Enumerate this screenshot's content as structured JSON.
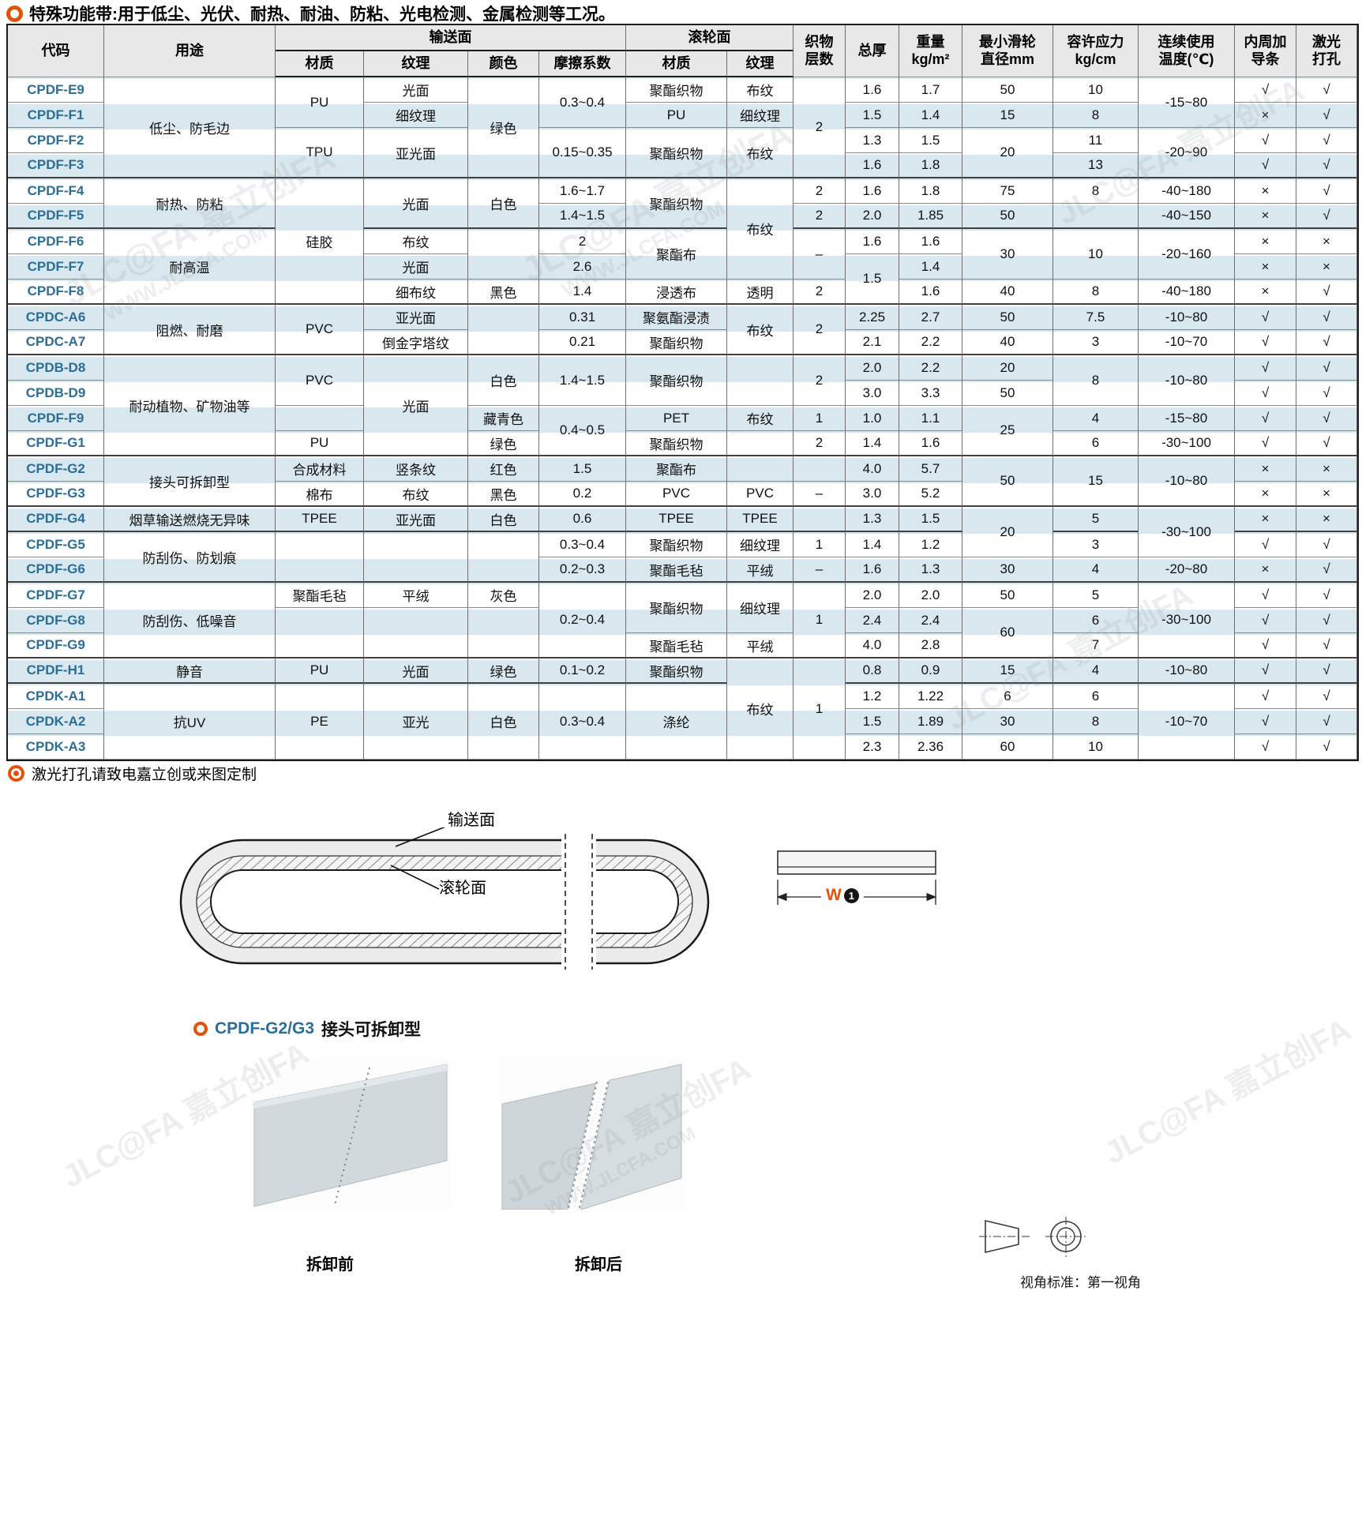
{
  "page": {
    "title": "特殊功能带:用于低尘、光伏、耐热、耐油、防粘、光电检测、金属检测等工况。",
    "footnote": "激光打孔请致电嘉立创或来图定制",
    "accent_orange": "#e25309",
    "code_blue": "#2b6e97",
    "stripe_blue": "#d9e8ef"
  },
  "table": {
    "header": {
      "code": "代码",
      "use": "用途",
      "conveying_group": "输送面",
      "roller_group": "滚轮面",
      "material": "材质",
      "texture": "纹理",
      "color": "颜色",
      "friction": "摩擦系数",
      "layers_l1": "织物",
      "layers_l2": "层数",
      "thickness": "总厚",
      "weight_l1": "重量",
      "weight_l2": "kg/m²",
      "pulley_l1": "最小滑轮",
      "pulley_l2": "直径mm",
      "stress_l1": "容许应力",
      "stress_l2": "kg/cm",
      "temp_l1": "连续使用",
      "temp_l2": "温度(℃)",
      "guide_l1": "内周加",
      "guide_l2": "导条",
      "laser_l1": "激光",
      "laser_l2": "打孔"
    },
    "section_end_rows": [
      3,
      5,
      8,
      10,
      14,
      16,
      17,
      19,
      22,
      23
    ],
    "rows": [
      [
        [
          "CPDF-E9"
        ],
        [
          "低尘、防毛边",
          4
        ],
        [
          "PU",
          2
        ],
        [
          "光面"
        ],
        [
          "绿色",
          4
        ],
        [
          "0.3~0.4",
          2
        ],
        [
          "聚酯织物"
        ],
        [
          "布纹"
        ],
        [
          "2",
          4
        ],
        [
          "1.6"
        ],
        [
          "1.7"
        ],
        [
          "50"
        ],
        [
          "10"
        ],
        [
          "-15~80",
          2
        ],
        [
          "√"
        ],
        [
          "√"
        ]
      ],
      [
        [
          "CPDF-F1"
        ],
        [
          "细纹理"
        ],
        [
          "PU"
        ],
        [
          "细纹理"
        ],
        [
          "1.5"
        ],
        [
          "1.4"
        ],
        [
          "15"
        ],
        [
          "8"
        ],
        [
          "×"
        ],
        [
          "√"
        ]
      ],
      [
        [
          "CPDF-F2"
        ],
        [
          "TPU",
          2
        ],
        [
          "亚光面",
          2
        ],
        [
          "0.15~0.35",
          2
        ],
        [
          "聚酯织物",
          2
        ],
        [
          "布纹",
          2
        ],
        [
          "1.3"
        ],
        [
          "1.5"
        ],
        [
          "20",
          2
        ],
        [
          "11"
        ],
        [
          "-20~90",
          2
        ],
        [
          "√"
        ],
        [
          "√"
        ]
      ],
      [
        [
          "CPDF-F3"
        ],
        [
          "1.6"
        ],
        [
          "1.8"
        ],
        [
          "13"
        ],
        [
          "√"
        ],
        [
          "√"
        ]
      ],
      [
        [
          "CPDF-F4"
        ],
        [
          "耐热、防粘",
          2
        ],
        [
          "硅胶",
          5
        ],
        [
          "光面",
          2
        ],
        [
          "白色",
          2
        ],
        [
          "1.6~1.7"
        ],
        [
          "聚酯织物",
          2
        ],
        [
          "布纹",
          4
        ],
        [
          "2"
        ],
        [
          "1.6"
        ],
        [
          "1.8"
        ],
        [
          "75"
        ],
        [
          "8"
        ],
        [
          "-40~180"
        ],
        [
          "×"
        ],
        [
          "√"
        ]
      ],
      [
        [
          "CPDF-F5"
        ],
        [
          "1.4~1.5"
        ],
        [
          "2"
        ],
        [
          "2.0"
        ],
        [
          "1.85"
        ],
        [
          "50"
        ],
        [
          ""
        ],
        [
          "-40~150"
        ],
        [
          "×"
        ],
        [
          "√"
        ]
      ],
      [
        [
          "CPDF-F6"
        ],
        [
          "耐高温",
          3
        ],
        [
          "布纹"
        ],
        [
          "",
          2
        ],
        [
          "2"
        ],
        [
          "聚酯布",
          2
        ],
        [
          "–",
          2
        ],
        [
          "1.6"
        ],
        [
          "1.6"
        ],
        [
          "30",
          2
        ],
        [
          "10",
          2
        ],
        [
          "-20~160",
          2
        ],
        [
          "×"
        ],
        [
          "×"
        ]
      ],
      [
        [
          "CPDF-F7"
        ],
        [
          "光面"
        ],
        [
          "2.6"
        ],
        [
          "1.5",
          2
        ],
        [
          "1.4"
        ],
        [
          "×"
        ],
        [
          "×"
        ]
      ],
      [
        [
          "CPDF-F8"
        ],
        [
          "细布纹"
        ],
        [
          "黑色"
        ],
        [
          "1.4"
        ],
        [
          "浸透布"
        ],
        [
          "透明"
        ],
        [
          "2"
        ],
        [
          "1.6"
        ],
        [
          "40"
        ],
        [
          "8"
        ],
        [
          "-40~180"
        ],
        [
          "×"
        ],
        [
          "√"
        ]
      ],
      [
        [
          "CPDC-A6"
        ],
        [
          "阻燃、耐磨",
          2
        ],
        [
          "PVC",
          2
        ],
        [
          "亚光面"
        ],
        [
          "",
          2
        ],
        [
          "0.31"
        ],
        [
          "聚氨酯浸渍"
        ],
        [
          "布纹",
          2
        ],
        [
          "2",
          2
        ],
        [
          "2.25"
        ],
        [
          "2.7"
        ],
        [
          "50"
        ],
        [
          "7.5"
        ],
        [
          "-10~80"
        ],
        [
          "√"
        ],
        [
          "√"
        ]
      ],
      [
        [
          "CPDC-A7"
        ],
        [
          "倒金字塔纹"
        ],
        [
          "0.21"
        ],
        [
          "聚酯织物"
        ],
        [
          "2.1"
        ],
        [
          "2.2"
        ],
        [
          "40"
        ],
        [
          "3"
        ],
        [
          "-10~70"
        ],
        [
          "√"
        ],
        [
          "√"
        ]
      ],
      [
        [
          "CPDB-D8"
        ],
        [
          "耐动植物、矿物油等",
          4
        ],
        [
          "PVC",
          2
        ],
        [
          "光面",
          4
        ],
        [
          "白色",
          2
        ],
        [
          "1.4~1.5",
          2
        ],
        [
          "聚酯织物",
          2
        ],
        [
          "",
          2
        ],
        [
          "2",
          2
        ],
        [
          "2.0"
        ],
        [
          "2.2"
        ],
        [
          "20"
        ],
        [
          "8",
          2
        ],
        [
          "-10~80",
          2
        ],
        [
          "√"
        ],
        [
          "√"
        ]
      ],
      [
        [
          "CPDB-D9"
        ],
        [
          "3.0"
        ],
        [
          "3.3"
        ],
        [
          "50"
        ],
        [
          "√"
        ],
        [
          "√"
        ]
      ],
      [
        [
          "CPDF-F9"
        ],
        [
          ""
        ],
        [
          "藏青色"
        ],
        [
          "0.4~0.5",
          2
        ],
        [
          "PET"
        ],
        [
          "布纹"
        ],
        [
          "1"
        ],
        [
          "1.0"
        ],
        [
          "1.1"
        ],
        [
          "25",
          2
        ],
        [
          "4"
        ],
        [
          "-15~80"
        ],
        [
          "√"
        ],
        [
          "√"
        ]
      ],
      [
        [
          "CPDF-G1"
        ],
        [
          "PU"
        ],
        [
          "绿色"
        ],
        [
          "聚酯织物"
        ],
        [
          ""
        ],
        [
          "2"
        ],
        [
          "1.4"
        ],
        [
          "1.6"
        ],
        [
          "6"
        ],
        [
          "-30~100"
        ],
        [
          "√"
        ],
        [
          "√"
        ]
      ],
      [
        [
          "CPDF-G2"
        ],
        [
          "接头可拆卸型",
          2
        ],
        [
          "合成材料"
        ],
        [
          "竖条纹"
        ],
        [
          "红色"
        ],
        [
          "1.5"
        ],
        [
          "聚酯布"
        ],
        [
          ""
        ],
        [
          ""
        ],
        [
          "4.0"
        ],
        [
          "5.7"
        ],
        [
          "50",
          2
        ],
        [
          "15",
          2
        ],
        [
          "-10~80",
          2
        ],
        [
          "×"
        ],
        [
          "×"
        ]
      ],
      [
        [
          "CPDF-G3"
        ],
        [
          "棉布"
        ],
        [
          "布纹"
        ],
        [
          "黑色"
        ],
        [
          "0.2"
        ],
        [
          "PVC"
        ],
        [
          "PVC"
        ],
        [
          "–"
        ],
        [
          "3.0"
        ],
        [
          "5.2"
        ],
        [
          "×"
        ],
        [
          "×"
        ]
      ],
      [
        [
          "CPDF-G4"
        ],
        [
          "烟草输送燃烧无异味"
        ],
        [
          "TPEE"
        ],
        [
          "亚光面"
        ],
        [
          "白色"
        ],
        [
          "0.6"
        ],
        [
          "TPEE"
        ],
        [
          "TPEE"
        ],
        [
          ""
        ],
        [
          "1.3"
        ],
        [
          "1.5"
        ],
        [
          "20",
          2
        ],
        [
          "5"
        ],
        [
          "-30~100",
          2
        ],
        [
          "×"
        ],
        [
          "×"
        ]
      ],
      [
        [
          "CPDF-G5"
        ],
        [
          "防刮伤、防划痕",
          2
        ],
        [
          "",
          2
        ],
        [
          "",
          2
        ],
        [
          "",
          2
        ],
        [
          "0.3~0.4"
        ],
        [
          "聚酯织物"
        ],
        [
          "细纹理"
        ],
        [
          "1"
        ],
        [
          "1.4"
        ],
        [
          "1.2"
        ],
        [
          "3"
        ],
        [
          "√"
        ],
        [
          "√"
        ]
      ],
      [
        [
          "CPDF-G6"
        ],
        [
          "0.2~0.3"
        ],
        [
          "聚酯毛毡"
        ],
        [
          "平绒"
        ],
        [
          "–"
        ],
        [
          "1.6"
        ],
        [
          "1.3"
        ],
        [
          "30"
        ],
        [
          "4"
        ],
        [
          "-20~80"
        ],
        [
          "×"
        ],
        [
          "√"
        ]
      ],
      [
        [
          "CPDF-G7"
        ],
        [
          "防刮伤、低噪音",
          3
        ],
        [
          "聚酯毛毡"
        ],
        [
          "平绒"
        ],
        [
          "灰色"
        ],
        [
          "0.2~0.4",
          3
        ],
        [
          "聚酯织物",
          2
        ],
        [
          "细纹理",
          2
        ],
        [
          "1",
          3
        ],
        [
          "2.0"
        ],
        [
          "2.0"
        ],
        [
          "50"
        ],
        [
          "5"
        ],
        [
          "-30~100",
          3
        ],
        [
          "√"
        ],
        [
          "√"
        ]
      ],
      [
        [
          "CPDF-G8"
        ],
        [
          "",
          2
        ],
        [
          "",
          2
        ],
        [
          "",
          2
        ],
        [
          "2.4"
        ],
        [
          "2.4"
        ],
        [
          "60",
          2
        ],
        [
          "6"
        ],
        [
          "√"
        ],
        [
          "√"
        ]
      ],
      [
        [
          "CPDF-G9"
        ],
        [
          "聚酯毛毡"
        ],
        [
          "平绒"
        ],
        [
          "4.0"
        ],
        [
          "2.8"
        ],
        [
          "7"
        ],
        [
          "√"
        ],
        [
          "√"
        ]
      ],
      [
        [
          "CPDF-H1"
        ],
        [
          "静音"
        ],
        [
          "PU"
        ],
        [
          "光面"
        ],
        [
          "绿色"
        ],
        [
          "0.1~0.2"
        ],
        [
          "聚酯织物"
        ],
        [
          "布纹",
          4
        ],
        [
          "1",
          4
        ],
        [
          "0.8"
        ],
        [
          "0.9"
        ],
        [
          "15"
        ],
        [
          "4"
        ],
        [
          "-10~80"
        ],
        [
          "√"
        ],
        [
          "√"
        ]
      ],
      [
        [
          "CPDK-A1"
        ],
        [
          "抗UV",
          3
        ],
        [
          "PE",
          3
        ],
        [
          "亚光",
          3
        ],
        [
          "白色",
          3
        ],
        [
          "0.3~0.4",
          3
        ],
        [
          "涤纶",
          3
        ],
        [
          "1.2"
        ],
        [
          "1.22"
        ],
        [
          "6"
        ],
        [
          "6"
        ],
        [
          "-10~70",
          3
        ],
        [
          "√"
        ],
        [
          "√"
        ]
      ],
      [
        [
          "CPDK-A2"
        ],
        [
          "1.5"
        ],
        [
          "1.89"
        ],
        [
          "30"
        ],
        [
          "8"
        ],
        [
          "√"
        ],
        [
          "√"
        ]
      ],
      [
        [
          "CPDK-A3"
        ],
        [
          "2.3"
        ],
        [
          "2.36"
        ],
        [
          "60"
        ],
        [
          "10"
        ],
        [
          "√"
        ],
        [
          "√"
        ]
      ]
    ]
  },
  "belt_diagram": {
    "label_top": "输送面",
    "label_inner": "滚轮面"
  },
  "width_diagram": {
    "letter": "W",
    "badge": "1"
  },
  "detach_section": {
    "heading_code": "CPDF-G2/G3",
    "heading_text": "接头可拆卸型",
    "before_label": "拆卸前",
    "after_label": "拆卸后"
  },
  "projection": {
    "label": "视角标准：第一视角"
  },
  "watermark": {
    "brand": "JLC@FA 嘉立创FA",
    "site": "WWW.JLCFA.COM"
  }
}
